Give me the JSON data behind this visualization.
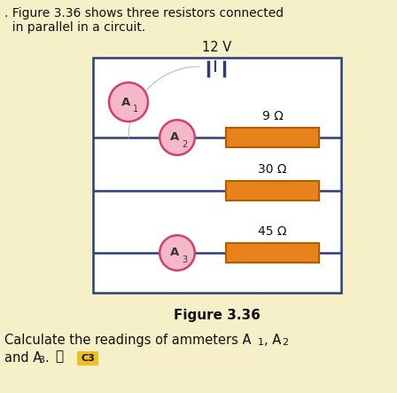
{
  "background_color": "#f5f0c8",
  "title_text": "Figure 3.36",
  "header_line1": ". Figure 3.36 shows three resistors connected",
  "header_line2": "  in parallel in a circuit.",
  "footer_line1": "Calculate the readings of ammeters A",
  "footer_line1b": "1",
  "footer_line1c": ", A",
  "footer_line1d": "2",
  "footer_line2": "and A",
  "footer_line2b": "3",
  "footer_line2c": ".",
  "voltage_label": "12 V",
  "res_labels": [
    "9 Ω",
    "30 Ω",
    "45 Ω"
  ],
  "wire_color": "#2b3d7a",
  "resistor_face": "#e8821a",
  "resistor_edge": "#b85a00",
  "ammeter_fill": "#f5b8c8",
  "ammeter_edge": "#d04070",
  "ammeter_text": "#333333",
  "box_face": "#ffffff",
  "caption_color": "#111111"
}
